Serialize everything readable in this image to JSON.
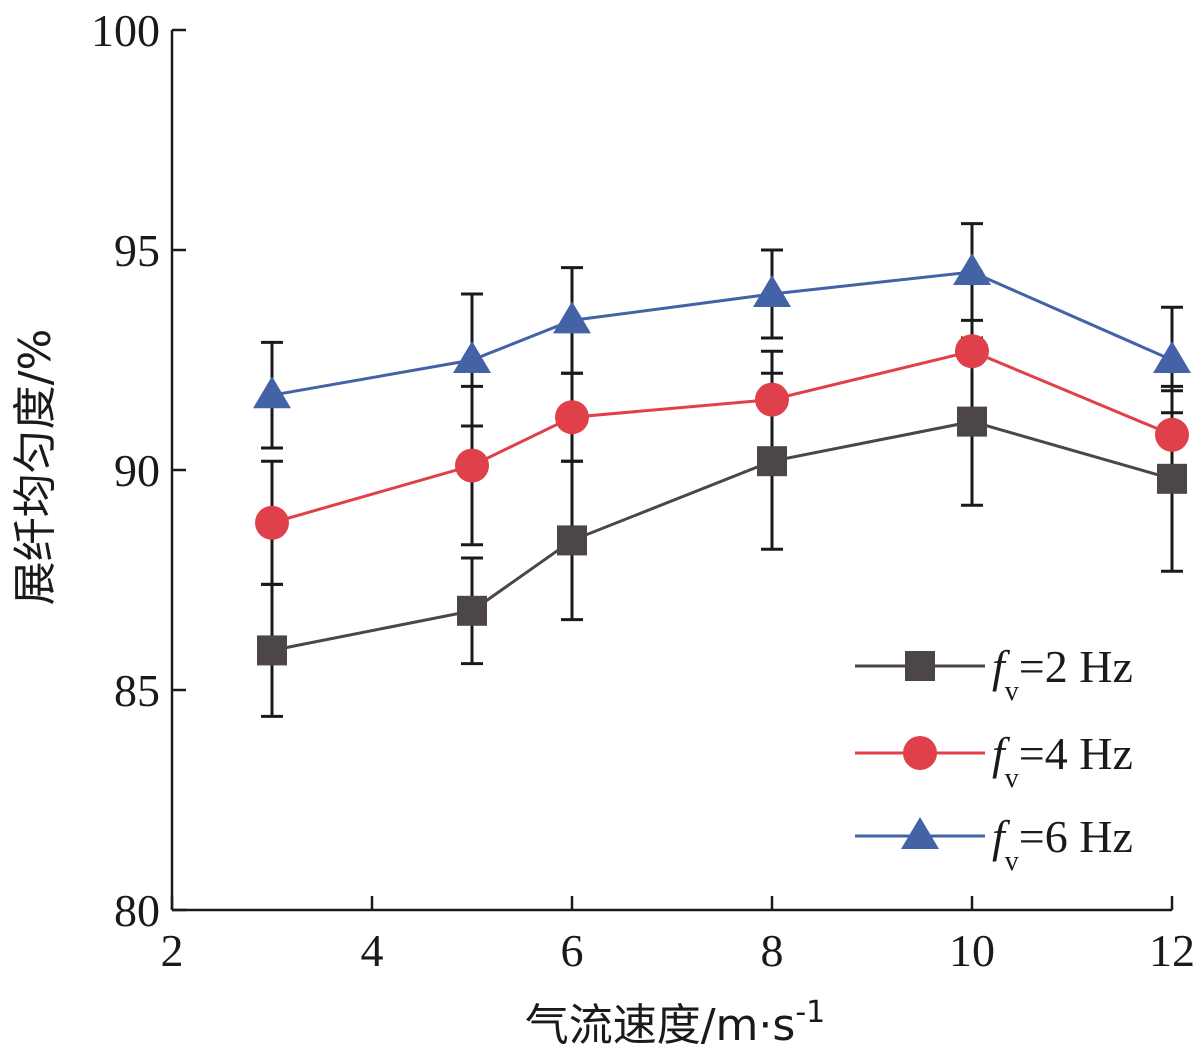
{
  "chart_data": {
    "type": "line",
    "title": "",
    "xlabel": "气流速度/m·s",
    "xlabel_sup": "-1",
    "ylabel": "展纤均匀度/%",
    "x": [
      3,
      5,
      6,
      8,
      10,
      12
    ],
    "xlim": [
      2,
      12
    ],
    "ylim": [
      80,
      100
    ],
    "xticks": [
      2,
      4,
      6,
      8,
      10,
      12
    ],
    "yticks": [
      80,
      85,
      90,
      95,
      100
    ],
    "grid": false,
    "legend_position": "bottom-right",
    "series": [
      {
        "name_prefix": "f",
        "name_sub": "v",
        "name_suffix": "=2 Hz",
        "marker": "square",
        "color": "#4d4646",
        "values": [
          85.9,
          86.8,
          88.4,
          90.2,
          91.1,
          89.8
        ],
        "errors": [
          1.5,
          1.2,
          1.8,
          2.0,
          1.9,
          2.1
        ]
      },
      {
        "name_prefix": "f",
        "name_sub": "v",
        "name_suffix": "=4 Hz",
        "marker": "circle",
        "color": "#e0404a",
        "values": [
          88.8,
          90.1,
          91.2,
          91.6,
          92.7,
          90.8
        ],
        "errors": [
          1.4,
          1.8,
          1.0,
          1.1,
          1.8,
          1.0
        ]
      },
      {
        "name_prefix": "f",
        "name_sub": "v",
        "name_suffix": "=6 Hz",
        "marker": "triangle",
        "color": "#4462a6",
        "values": [
          91.7,
          92.5,
          93.4,
          94.0,
          94.5,
          92.5
        ],
        "errors": [
          1.2,
          1.5,
          1.2,
          1.0,
          1.1,
          1.2
        ]
      }
    ]
  }
}
